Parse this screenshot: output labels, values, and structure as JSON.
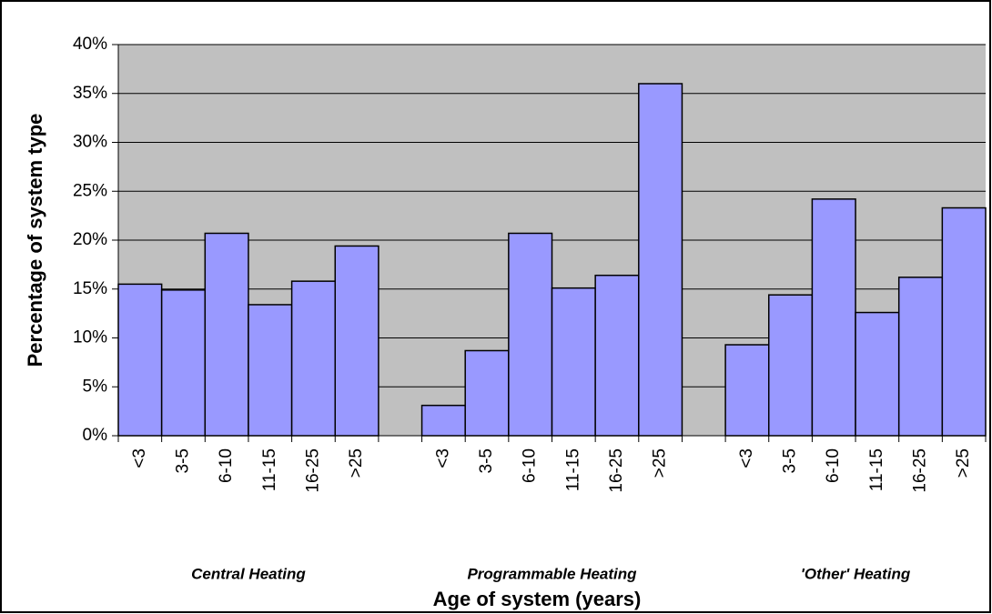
{
  "chart_data": {
    "type": "bar",
    "y_label": "Percentage of system type",
    "x_label": "Age of system (years)",
    "group_labels": [
      "Central Heating",
      "Programmable Heating",
      "'Other' Heating"
    ],
    "categories": [
      "<3",
      "3-5",
      "6-10",
      "11-15",
      "16-25",
      ">25",
      null,
      "<3",
      "3-5",
      "6-10",
      "11-15",
      "16-25",
      ">25",
      null,
      "<3",
      "3-5",
      "6-10",
      "11-15",
      "16-25",
      ">25"
    ],
    "values": [
      15.5,
      14.9,
      20.7,
      13.4,
      15.8,
      19.4,
      null,
      3.1,
      8.7,
      20.7,
      15.1,
      16.4,
      36.0,
      null,
      9.3,
      14.4,
      24.2,
      12.6,
      16.2,
      23.3
    ],
    "color": "#9999ff",
    "ylim": [
      0,
      40
    ],
    "yticks": [
      {
        "value": 0,
        "label": "0%"
      },
      {
        "value": 5,
        "label": "5%"
      },
      {
        "value": 10,
        "label": "10%"
      },
      {
        "value": 15,
        "label": "15%"
      },
      {
        "value": 20,
        "label": "20%"
      },
      {
        "value": 25,
        "label": "25%"
      },
      {
        "value": 30,
        "label": "30%"
      },
      {
        "value": 35,
        "label": "35%"
      },
      {
        "value": 40,
        "label": "40%"
      }
    ],
    "grid": true
  }
}
